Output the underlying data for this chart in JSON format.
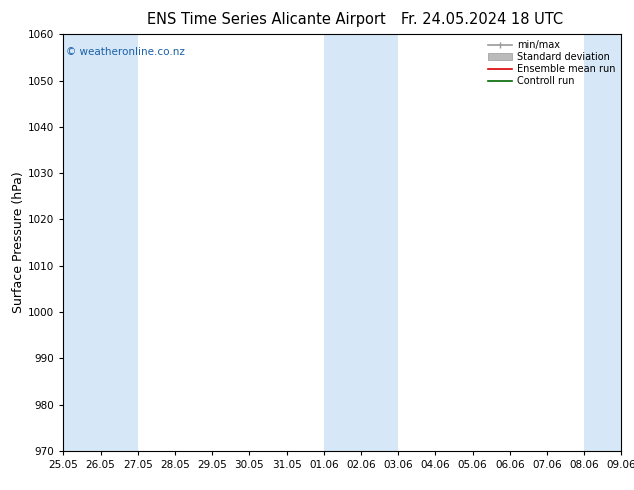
{
  "title_left": "ENS Time Series Alicante Airport",
  "title_right": "Fr. 24.05.2024 18 UTC",
  "ylabel": "Surface Pressure (hPa)",
  "ylim": [
    970,
    1060
  ],
  "yticks": [
    970,
    980,
    990,
    1000,
    1010,
    1020,
    1030,
    1040,
    1050,
    1060
  ],
  "x_labels": [
    "25.05",
    "26.05",
    "27.05",
    "28.05",
    "29.05",
    "30.05",
    "31.05",
    "01.06",
    "02.06",
    "03.06",
    "04.06",
    "05.06",
    "06.06",
    "07.06",
    "08.06",
    "09.06"
  ],
  "shaded_intervals": [
    [
      0,
      1
    ],
    [
      1,
      2
    ],
    [
      7,
      8
    ],
    [
      8,
      9
    ],
    [
      14,
      15
    ]
  ],
  "shaded_color": "#d6e8f7",
  "bg_color": "#ffffff",
  "plot_bg_color": "#ffffff",
  "watermark": "© weatheronline.co.nz",
  "watermark_color": "#1a5fa8",
  "legend_items": [
    {
      "label": "min/max",
      "color": "#999999",
      "lw": 1.2
    },
    {
      "label": "Standard deviation",
      "color": "#bbbbbb",
      "lw": 6
    },
    {
      "label": "Ensemble mean run",
      "color": "#dd0000",
      "lw": 1.2
    },
    {
      "label": "Controll run",
      "color": "#006600",
      "lw": 1.2
    }
  ],
  "grid_color": "#cccccc",
  "tick_label_fontsize": 7.5,
  "axis_label_fontsize": 9,
  "title_fontsize": 10.5
}
